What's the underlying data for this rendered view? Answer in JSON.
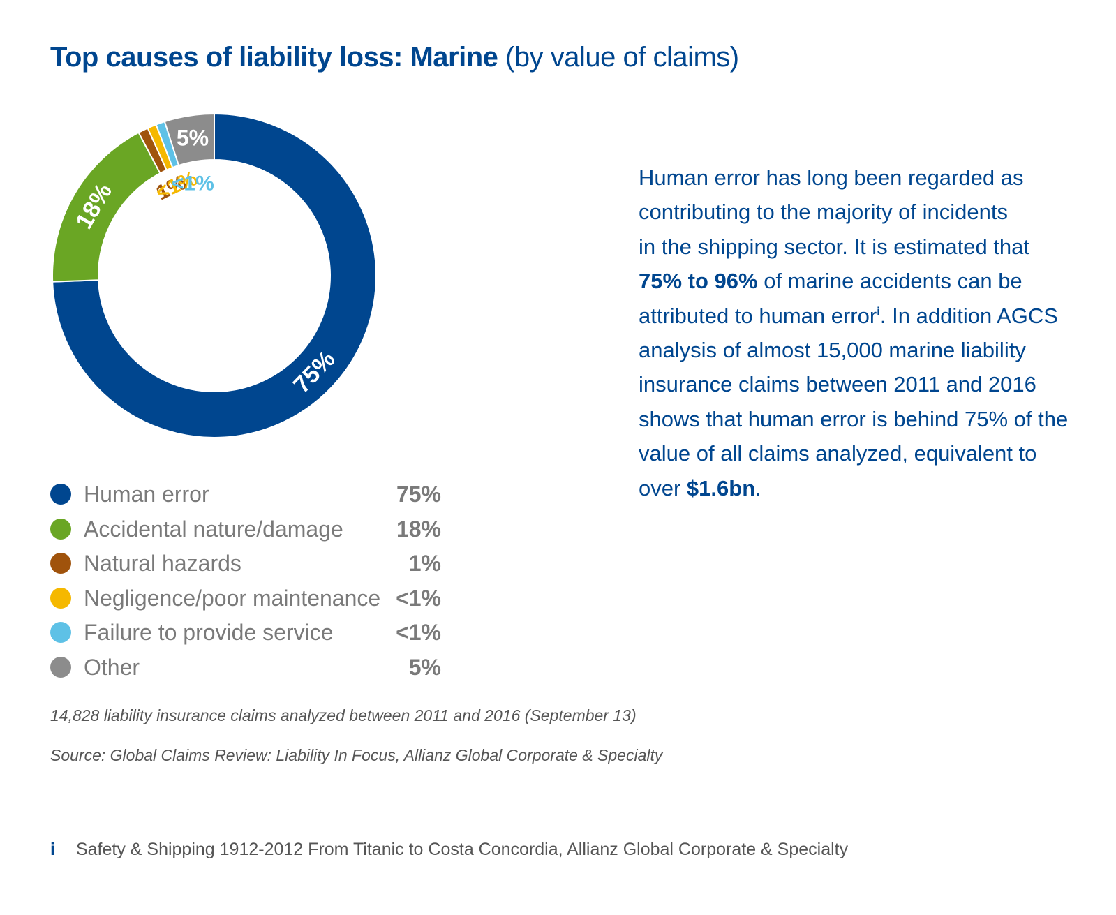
{
  "header": {
    "title_bold": "Top causes of liability loss: Marine",
    "title_light": "(by value of claims)"
  },
  "chart_data": {
    "type": "pie",
    "variant": "donut",
    "title": "Top causes of liability loss: Marine (by value of claims)",
    "series": [
      {
        "name": "Human error",
        "value": 75,
        "label": "75%",
        "legend_value": "75%",
        "color": "#00468f",
        "label_color": "#ffffff"
      },
      {
        "name": "Accidental nature/damage",
        "value": 18,
        "label": "18%",
        "legend_value": "18%",
        "color": "#6aa624",
        "label_color": "#ffffff"
      },
      {
        "name": "Natural hazards",
        "value": 1,
        "label": "1%",
        "legend_value": "1%",
        "color": "#a0530c",
        "label_color": "#a0530c"
      },
      {
        "name": "Negligence/poor maintenance",
        "value": 0.9,
        "label": "<1%",
        "legend_value": "<1%",
        "color": "#f5b800",
        "label_color": "#f5b800"
      },
      {
        "name": "Failure to provide service",
        "value": 0.9,
        "label": "<1%",
        "legend_value": "<1%",
        "color": "#5ec1e6",
        "label_color": "#5ec1e6"
      },
      {
        "name": "Other",
        "value": 5,
        "label": "5%",
        "legend_value": "5%",
        "color": "#8c8c8c",
        "label_color": "#ffffff"
      }
    ],
    "legend_placement": "bottom"
  },
  "body": {
    "line1": "Human error has long been regarded as",
    "line2": "contributing to the majority of incidents",
    "line3": "in the shipping sector. It is estimated that",
    "line4_bold": "75% to 96%",
    "line4_rest": " of marine accidents can be",
    "line5_start": "attributed to human error",
    "line5_sup": "i",
    "line5_end": ". In addition AGCS",
    "line6": "analysis of almost 15,000 marine liability",
    "line7": "insurance claims between 2011 and 2016",
    "line8": "shows that human error is behind 75% of the",
    "line9": "value of all claims analyzed, equivalent to",
    "line10_start": "over ",
    "line10_bold": "$1.6bn",
    "line10_end": "."
  },
  "notes": {
    "claims_note": "14,828 liability insurance claims analyzed between 2011 and 2016 (September 13)",
    "source": "Source: Global Claims Review: Liability In Focus, Allianz Global Corporate & Specialty"
  },
  "footnote": {
    "marker": "i",
    "text": "Safety & Shipping 1912-2012 From Titanic to Costa Concordia, Allianz Global Corporate & Specialty"
  }
}
